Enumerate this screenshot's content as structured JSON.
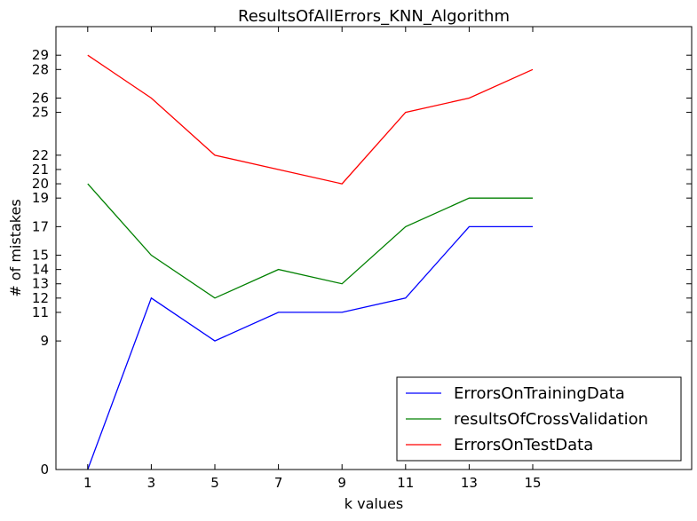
{
  "chart_data": {
    "type": "line",
    "title": "ResultsOfAllErrors_KNN_Algorithm",
    "xlabel": "k values",
    "ylabel": "# of mistakes",
    "x": [
      1,
      3,
      5,
      7,
      9,
      11,
      13,
      15
    ],
    "xlim": [
      0,
      20
    ],
    "ylim": [
      0,
      31
    ],
    "x_ticks": [
      1,
      3,
      5,
      7,
      9,
      11,
      13,
      15
    ],
    "y_ticks": [
      0,
      9,
      11,
      12,
      13,
      14,
      15,
      17,
      19,
      20,
      21,
      22,
      25,
      26,
      28,
      29
    ],
    "grid": false,
    "legend_position": "lower-right",
    "series": [
      {
        "name": "ErrorsOnTrainingData",
        "color": "#0000ff",
        "values": [
          0,
          12,
          9,
          11,
          11,
          12,
          17,
          17
        ]
      },
      {
        "name": "resultsOfCrossValidation",
        "color": "#008000",
        "values": [
          20,
          15,
          12,
          14,
          13,
          17,
          19,
          19
        ]
      },
      {
        "name": "ErrorsOnTestData",
        "color": "#ff0000",
        "values": [
          29,
          26,
          22,
          21,
          20,
          25,
          26,
          28
        ]
      }
    ]
  }
}
